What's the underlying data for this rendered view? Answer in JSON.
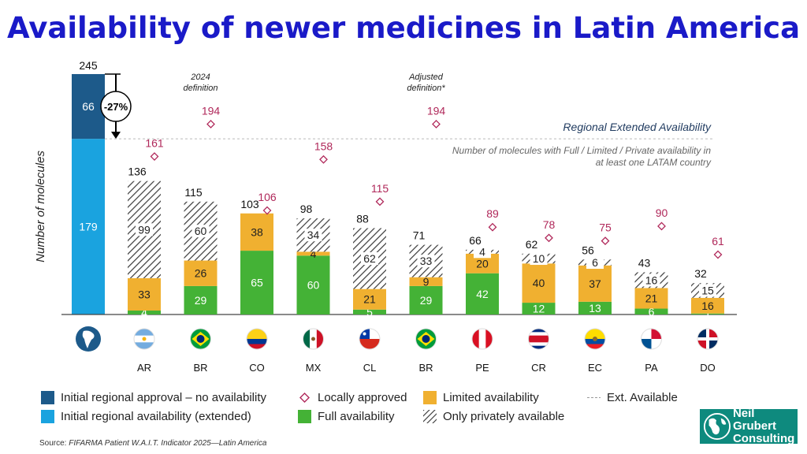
{
  "title": "Availability of newer medicines in Latin America",
  "source_prefix": "Source: ",
  "source_text": "FIFARMA Patient W.A.I.T. Indicator 2025—Latin America",
  "logo": {
    "line1": "Neil Grubert",
    "line2": "Consulting"
  },
  "colors": {
    "initial_no_avail": "#1d5a8a",
    "initial_extended": "#1aa3df",
    "full": "#44b236",
    "limited": "#f0b030",
    "locally_approved": "#b0285a",
    "arrow_accent": "#000000"
  },
  "legend": [
    {
      "key": "initial_no_avail",
      "label": "Initial regional approval – no availability",
      "icon": "dark-blue-square"
    },
    {
      "key": "locally_approved",
      "label": "Locally approved",
      "icon": "diamond-outline"
    },
    {
      "key": "limited",
      "label": "Limited availability",
      "icon": "orange-square"
    },
    {
      "key": "ext_available",
      "label": "Ext. Available",
      "icon": "dashed-line"
    },
    {
      "key": "initial_extended",
      "label": "Initial regional availability (extended)",
      "icon": "light-blue-square"
    },
    {
      "key": "full",
      "label": "Full availability",
      "icon": "green-square"
    },
    {
      "key": "private",
      "label": "Only privately available",
      "icon": "hatched-square"
    }
  ],
  "chart_data": {
    "type": "bar",
    "ylabel": "Number of molecules",
    "ylim": [
      0,
      245
    ],
    "regional_bar": {
      "total": 245,
      "initial_extended": 179,
      "initial_no_avail": 66,
      "change_label": "-27%",
      "icon": "south-america-icon"
    },
    "reference_line": {
      "value": 179,
      "label": "Regional Extended Availability",
      "note_line1": "Number of molecules with Full / Limited / Private availability in",
      "note_line2": "at least one LATAM country"
    },
    "annotations": [
      {
        "text_line1": "2024",
        "text_line2": "definition",
        "over_index": 1
      },
      {
        "text_line1": "Adjusted",
        "text_line2": "definition*",
        "over_index": 5
      }
    ],
    "categories": [
      "AR",
      "BR",
      "CO",
      "MX",
      "CL",
      "BR",
      "PE",
      "CR",
      "EC",
      "PA",
      "DO"
    ],
    "flag_icons": [
      "argentina-flag-icon",
      "brazil-flag-icon",
      "colombia-flag-icon",
      "mexico-flag-icon",
      "chile-flag-icon",
      "brazil-flag-icon",
      "peru-flag-icon",
      "costa-rica-flag-icon",
      "ecuador-flag-icon",
      "panama-flag-icon",
      "dominican-republic-flag-icon"
    ],
    "series": [
      {
        "name": "Full availability",
        "key": "full",
        "values": [
          4,
          29,
          65,
          60,
          5,
          29,
          42,
          12,
          13,
          6,
          1
        ]
      },
      {
        "name": "Limited availability",
        "key": "limited",
        "values": [
          33,
          26,
          38,
          4,
          21,
          9,
          20,
          40,
          37,
          21,
          16
        ]
      },
      {
        "name": "Only privately available",
        "key": "private",
        "values": [
          99,
          60,
          0,
          34,
          62,
          33,
          4,
          10,
          6,
          16,
          15
        ]
      }
    ],
    "totals": [
      136,
      115,
      103,
      98,
      88,
      71,
      66,
      62,
      56,
      43,
      32
    ],
    "locally_approved": [
      161,
      194,
      106,
      158,
      115,
      194,
      89,
      78,
      75,
      90,
      61
    ]
  }
}
